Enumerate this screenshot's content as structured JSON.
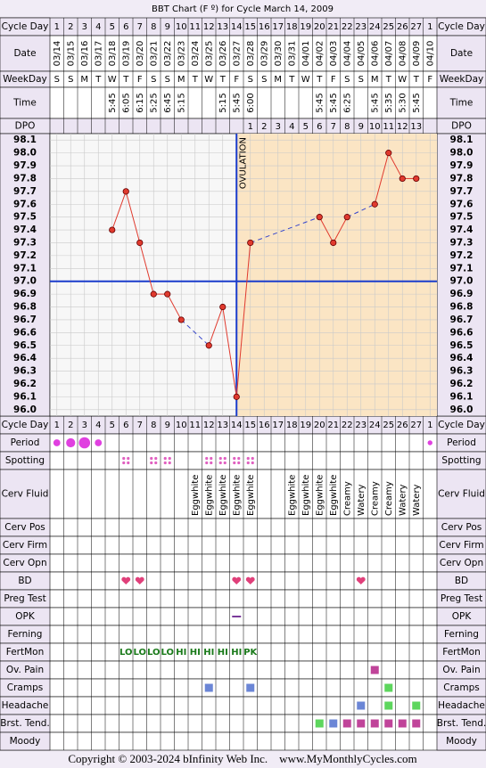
{
  "chart_data": {
    "type": "line",
    "title": "BBT Chart (F º) for Cycle March 14, 2009",
    "top_rows": [
      "Cycle Day",
      "Date",
      "WeekDay",
      "Time",
      "DPO"
    ],
    "bottom_rows": [
      "Period",
      "Spotting",
      "Cerv Fluid",
      "Cerv Pos",
      "Cerv Firm",
      "Cerv Opn",
      "BD",
      "Preg Test",
      "OPK",
      "Ferning",
      "FertMon",
      "Ov. Pain",
      "Cramps",
      "Headache",
      "Brst. Tend.",
      "Moody"
    ],
    "cycle_days": [
      1,
      2,
      3,
      4,
      5,
      6,
      7,
      8,
      9,
      10,
      11,
      12,
      13,
      14,
      15,
      16,
      17,
      18,
      19,
      20,
      21,
      22,
      23,
      24,
      25,
      26,
      27,
      1
    ],
    "dates": [
      "03/14",
      "03/15",
      "03/16",
      "03/17",
      "03/18",
      "03/19",
      "03/20",
      "03/21",
      "03/22",
      "03/23",
      "03/24",
      "03/25",
      "03/26",
      "03/27",
      "03/28",
      "03/29",
      "03/30",
      "03/31",
      "04/01",
      "04/02",
      "04/03",
      "04/04",
      "04/05",
      "04/06",
      "04/07",
      "04/08",
      "04/09",
      "04/10"
    ],
    "weekdays": [
      "S",
      "S",
      "M",
      "T",
      "W",
      "T",
      "F",
      "S",
      "S",
      "M",
      "T",
      "W",
      "T",
      "F",
      "S",
      "S",
      "M",
      "T",
      "W",
      "T",
      "F",
      "S",
      "S",
      "M",
      "T",
      "W",
      "T",
      "F"
    ],
    "times": [
      null,
      null,
      null,
      null,
      "5:45",
      "6:05",
      "6:15",
      "5:25",
      "6:45",
      "5:15",
      null,
      null,
      "5:15",
      "5:45",
      "6:00",
      null,
      null,
      null,
      null,
      "5:45",
      "5:45",
      "6:25",
      null,
      "5:45",
      "5:35",
      "5:30",
      "5:45",
      null
    ],
    "dpo": [
      null,
      null,
      null,
      null,
      null,
      null,
      null,
      null,
      null,
      null,
      null,
      null,
      null,
      null,
      1,
      2,
      3,
      4,
      5,
      6,
      7,
      8,
      9,
      10,
      11,
      12,
      13,
      null
    ],
    "values": [
      null,
      null,
      null,
      null,
      97.4,
      97.7,
      97.3,
      96.9,
      96.9,
      96.7,
      null,
      96.5,
      96.8,
      96.1,
      97.3,
      null,
      null,
      null,
      null,
      97.5,
      97.3,
      97.5,
      null,
      97.6,
      98.0,
      97.8,
      97.8,
      null
    ],
    "color": "#e03a2e",
    "ylim": [
      95.95,
      98.15
    ],
    "yticks": [
      {
        "value": 96,
        "label": "96.0"
      },
      96.1,
      96.2,
      96.3,
      96.4,
      96.5,
      96.6,
      96.7,
      96.8,
      96.9,
      {
        "value": 97,
        "label": "97.0"
      },
      97.1,
      97.2,
      97.3,
      97.4,
      97.5,
      97.6,
      97.7,
      97.8,
      97.9,
      {
        "value": 98,
        "label": "98.0"
      },
      98.1
    ],
    "grid": true,
    "coverline": 97,
    "coverline_color": "#1a3ccc",
    "ovulation_day": 14,
    "ovulation_label": "OVULATION",
    "luteal_color": "#fbe5c4",
    "period": [
      2,
      3,
      4,
      2,
      null,
      null,
      null,
      null,
      null,
      null,
      null,
      null,
      null,
      null,
      null,
      null,
      null,
      null,
      null,
      null,
      null,
      null,
      null,
      null,
      null,
      null,
      null,
      1
    ],
    "spotting": [
      null,
      null,
      null,
      null,
      null,
      true,
      null,
      true,
      true,
      null,
      null,
      true,
      true,
      true,
      true,
      null,
      null,
      null,
      null,
      null,
      null,
      null,
      null,
      null,
      null,
      null,
      null,
      null
    ],
    "cerv_fluid": [
      null,
      null,
      null,
      null,
      null,
      null,
      null,
      null,
      null,
      null,
      "Eggwhite",
      "Eggwhite",
      "Eggwhite",
      "Eggwhite",
      "Eggwhite",
      null,
      null,
      "Eggwhite",
      "Eggwhite",
      "Eggwhite",
      "Eggwhite",
      "Creamy",
      "Watery",
      "Creamy",
      "Creamy",
      "Watery",
      "Watery",
      null
    ],
    "bd": [
      null,
      null,
      null,
      null,
      null,
      true,
      true,
      null,
      null,
      null,
      null,
      null,
      null,
      true,
      true,
      null,
      null,
      null,
      null,
      null,
      null,
      null,
      true,
      null,
      null,
      null,
      null,
      null
    ],
    "opk": [
      null,
      null,
      null,
      null,
      null,
      null,
      null,
      null,
      null,
      null,
      null,
      null,
      null,
      true,
      null,
      null,
      null,
      null,
      null,
      null,
      null,
      null,
      null,
      null,
      null,
      null,
      null,
      null
    ],
    "fertmon": [
      null,
      null,
      null,
      null,
      null,
      "LO",
      "LO",
      "LO",
      "LO",
      "HI",
      "HI",
      "HI",
      "HI",
      "HI",
      "PK",
      null,
      null,
      null,
      null,
      null,
      null,
      null,
      null,
      null,
      null,
      null,
      null,
      null
    ],
    "ov_pain": [
      null,
      null,
      null,
      null,
      null,
      null,
      null,
      null,
      null,
      null,
      null,
      null,
      null,
      null,
      null,
      null,
      null,
      null,
      null,
      null,
      null,
      null,
      null,
      "#c0449a",
      null,
      null,
      null,
      null
    ],
    "cramps": [
      null,
      null,
      null,
      null,
      null,
      null,
      null,
      null,
      null,
      null,
      null,
      "#6b86d6",
      null,
      null,
      "#6b86d6",
      null,
      null,
      null,
      null,
      null,
      null,
      null,
      null,
      null,
      "#5dd65d",
      null,
      null,
      null
    ],
    "headache": [
      null,
      null,
      null,
      null,
      null,
      null,
      null,
      null,
      null,
      null,
      null,
      null,
      null,
      null,
      null,
      null,
      null,
      null,
      null,
      null,
      null,
      null,
      "#6b86d6",
      null,
      "#5dd65d",
      null,
      "#5dd65d",
      null
    ],
    "breast_tenderness": [
      null,
      null,
      null,
      null,
      null,
      null,
      null,
      null,
      null,
      null,
      null,
      null,
      null,
      null,
      null,
      null,
      null,
      null,
      null,
      "#5dd65d",
      "#6b86d6",
      "#c0449a",
      "#c0449a",
      "#c0449a",
      "#c0449a",
      "#c0449a",
      "#c0449a",
      null
    ],
    "footer": "Copyright © 2003-2024 bInfinity Web Inc.    www.MyMonthlyCycles.com"
  }
}
